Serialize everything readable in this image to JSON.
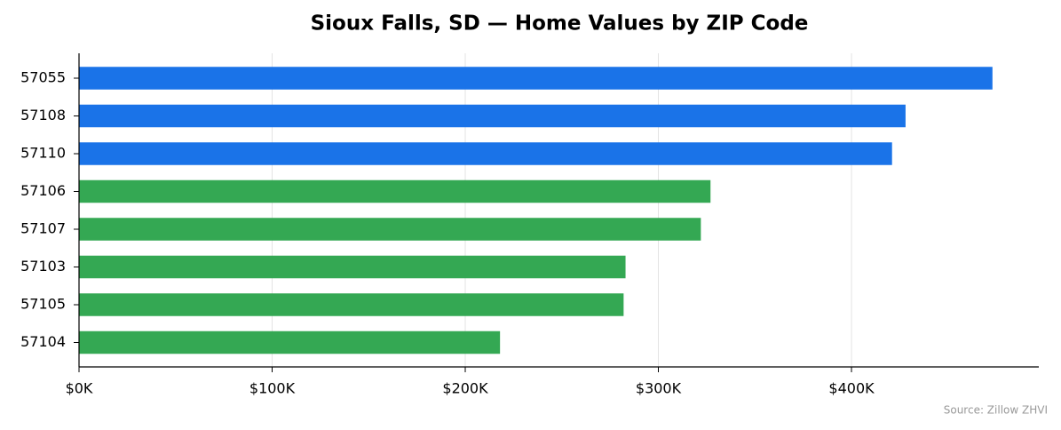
{
  "chart_data": {
    "type": "hbar",
    "title": "Sioux Falls, SD — Home Values by ZIP Code",
    "source": "Source: Zillow ZHVI",
    "categories": [
      "57055",
      "57108",
      "57110",
      "57106",
      "57107",
      "57103",
      "57105",
      "57104"
    ],
    "values": [
      473000,
      428000,
      421000,
      327000,
      322000,
      283000,
      282000,
      218000
    ],
    "colors": [
      "#1a73e8",
      "#1a73e8",
      "#1a73e8",
      "#34a853",
      "#34a853",
      "#34a853",
      "#34a853",
      "#34a853"
    ],
    "xlim": [
      0,
      497000
    ],
    "xticks": [
      {
        "value": 0,
        "label": "$0K"
      },
      {
        "value": 100000,
        "label": "$100K"
      },
      {
        "value": 200000,
        "label": "$200K"
      },
      {
        "value": 300000,
        "label": "$300K"
      },
      {
        "value": 400000,
        "label": "$400K"
      }
    ],
    "grid": true
  }
}
